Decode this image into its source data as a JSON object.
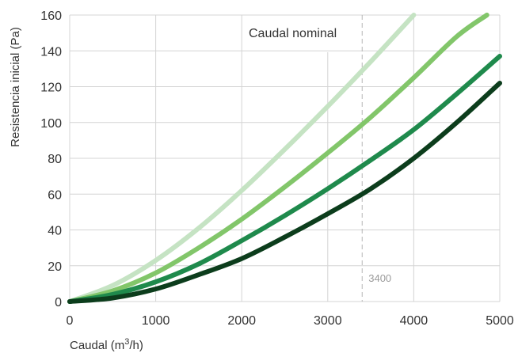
{
  "chart_data": {
    "type": "line",
    "xlabel": "Caudal (m",
    "xlabel_sup": "3",
    "xlabel_end": "/h)",
    "ylabel": "Resistencia inicial (Pa)",
    "xlim": [
      0,
      5000
    ],
    "ylim": [
      0,
      160
    ],
    "x_ticks": [
      0,
      1000,
      2000,
      3000,
      4000,
      5000
    ],
    "y_ticks": [
      0,
      20,
      40,
      60,
      80,
      100,
      120,
      140,
      160
    ],
    "x_tick_labels": [
      "0",
      "1000",
      "2000",
      "3000",
      "4000",
      "5000"
    ],
    "y_tick_labels": [
      "0",
      "20",
      "40",
      "60",
      "80",
      "100",
      "120",
      "140",
      "160"
    ],
    "grid": true,
    "reference_line": {
      "x": 3400,
      "label": "3400",
      "annotation": "Caudal nominal"
    },
    "series": [
      {
        "color": "#c5e3c3",
        "x": [
          0,
          500,
          1000,
          1500,
          2000,
          2500,
          3000,
          3500,
          4000
        ],
        "y": [
          0,
          9,
          23,
          41,
          62,
          85,
          109,
          134,
          160
        ]
      },
      {
        "color": "#82c66a",
        "x": [
          0,
          500,
          1000,
          1500,
          2000,
          2500,
          3000,
          3500,
          4000,
          4500,
          4850
        ],
        "y": [
          0,
          6,
          16,
          30,
          46,
          64,
          83,
          103,
          125,
          148,
          160
        ]
      },
      {
        "color": "#1f8a4c",
        "x": [
          0,
          500,
          1000,
          1500,
          2000,
          2500,
          3000,
          3500,
          4000,
          4500,
          5000
        ],
        "y": [
          0,
          4,
          11,
          21,
          34,
          48,
          63,
          79,
          96,
          116,
          137
        ]
      },
      {
        "color": "#0c3d1c",
        "x": [
          0,
          500,
          1000,
          1500,
          2000,
          2500,
          3000,
          3500,
          4000,
          4500,
          5000
        ],
        "y": [
          0,
          2,
          7,
          15,
          24,
          36,
          49,
          63,
          80,
          100,
          122
        ]
      }
    ]
  }
}
